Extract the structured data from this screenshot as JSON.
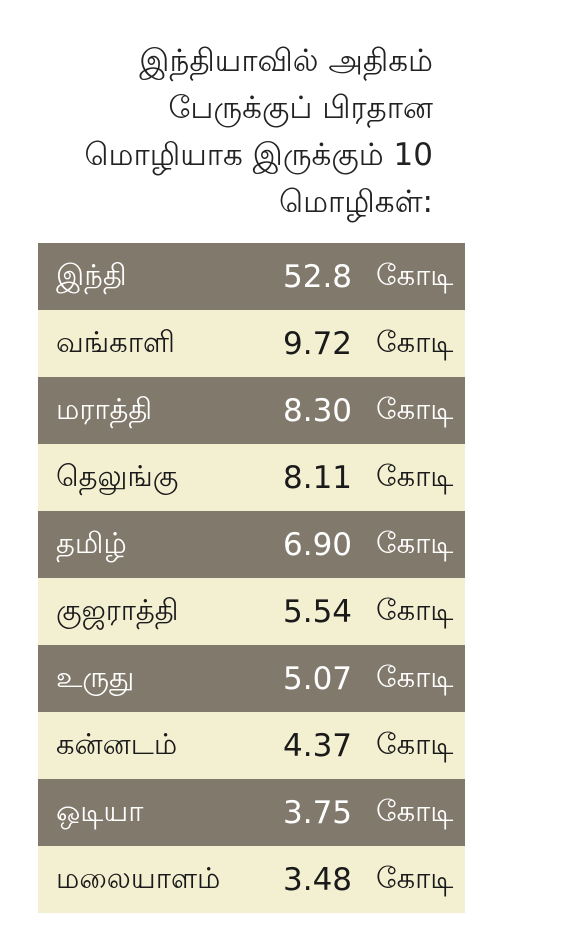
{
  "title_lines": [
    "இந்தியாவில் அதிகம்",
    "பேருக்குப் பிரதான",
    "மொழியாக இருக்கும் 10",
    "மொழிகள்:"
  ],
  "colors": {
    "dark_row": "#80796c",
    "light_row": "#f3f0d2"
  },
  "chart_data": {
    "type": "table",
    "unit": "கோடி",
    "rows": [
      {
        "language": "இந்தி",
        "value": "52.8",
        "unit": "கோடி"
      },
      {
        "language": "வங்காளி",
        "value": "9.72",
        "unit": "கோடி"
      },
      {
        "language": "மராத்தி",
        "value": "8.30",
        "unit": "கோடி"
      },
      {
        "language": "தெலுங்கு",
        "value": "8.11",
        "unit": "கோடி"
      },
      {
        "language": "தமிழ்",
        "value": "6.90",
        "unit": "கோடி"
      },
      {
        "language": "குஜராத்தி",
        "value": "5.54",
        "unit": "கோடி"
      },
      {
        "language": "உருது",
        "value": "5.07",
        "unit": "கோடி"
      },
      {
        "language": "கன்னடம்",
        "value": "4.37",
        "unit": "கோடி"
      },
      {
        "language": "ஒடியா",
        "value": "3.75",
        "unit": "கோடி"
      },
      {
        "language": "மலையாளம்",
        "value": "3.48",
        "unit": "கோடி"
      }
    ]
  }
}
